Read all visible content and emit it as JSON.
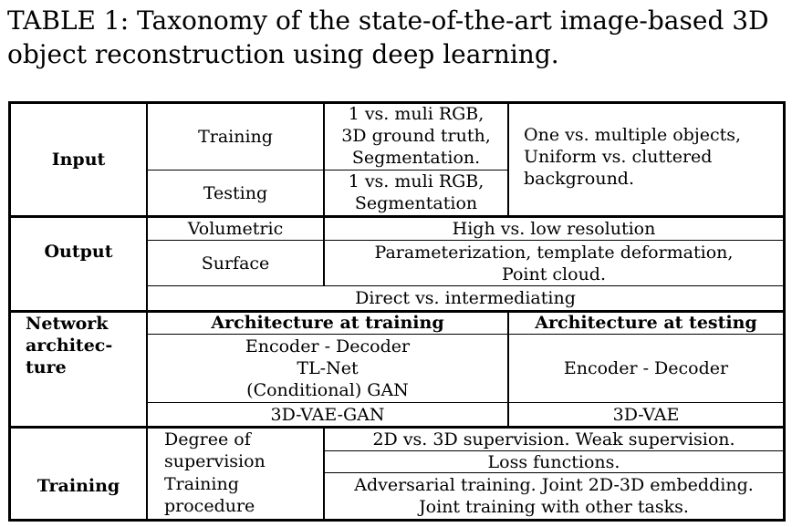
{
  "caption": {
    "line1": "TABLE 1: Taxonomy of the state-of-the-art image-based 3D",
    "line2": "object reconstruction using deep learning."
  },
  "input": {
    "title": "Input",
    "training": "Training",
    "training_detail": [
      "1 vs. muli RGB,",
      "3D ground truth,",
      "Segmentation."
    ],
    "testing": "Testing",
    "testing_detail": [
      "1 vs. muli RGB,",
      "Segmentation"
    ],
    "objects": [
      "One vs. multiple objects,",
      "Uniform vs. cluttered",
      "background."
    ]
  },
  "output": {
    "title": "Output",
    "volumetric": "Volumetric",
    "volumetric_detail": "High vs. low resolution",
    "surface": "Surface",
    "surface_detail": [
      "Parameterization, template deformation,",
      "Point cloud."
    ],
    "direct": "Direct vs. intermediating"
  },
  "network": {
    "title": [
      "Network",
      "architec-",
      "ture"
    ],
    "arch_training_header": "Architecture at training",
    "arch_testing_header": "Architecture at testing",
    "training_items": [
      "Encoder - Decoder",
      "TL-Net",
      "(Conditional) GAN"
    ],
    "testing_item": "Encoder - Decoder",
    "training_last": "3D-VAE-GAN",
    "testing_last": "3D-VAE"
  },
  "training": {
    "title": "Training",
    "degree": [
      "Degree of",
      "supervision"
    ],
    "degree_detail_1": "2D vs. 3D supervision. Weak supervision.",
    "degree_detail_2": "Loss functions.",
    "procedure": [
      "Training",
      "procedure"
    ],
    "procedure_detail": [
      "Adversarial training. Joint 2D-3D embedding.",
      "Joint training with other tasks."
    ]
  }
}
